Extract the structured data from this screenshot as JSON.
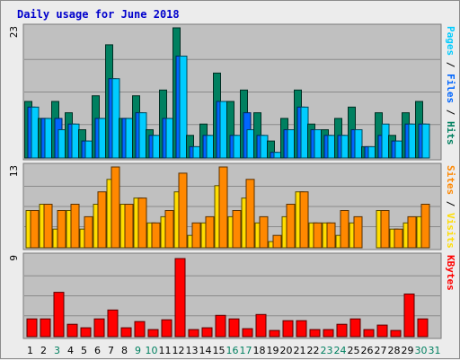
{
  "chart_data": {
    "type": "bar",
    "title": "Daily usage for June 2018",
    "categories": [
      "1",
      "2",
      "3",
      "4",
      "5",
      "6",
      "7",
      "8",
      "9",
      "10",
      "11",
      "12",
      "13",
      "14",
      "15",
      "16",
      "17",
      "18",
      "19",
      "20",
      "21",
      "22",
      "23",
      "24",
      "25",
      "26",
      "27",
      "28",
      "29",
      "30",
      "31"
    ],
    "weekend_days": [
      "3",
      "9",
      "10",
      "16",
      "17",
      "23",
      "24",
      "30",
      "31"
    ],
    "panels": [
      {
        "id": "hits",
        "ylim": [
          0,
          23
        ],
        "max_label": "23",
        "axis_title_parts": [
          {
            "text": "Pages",
            "color": "#00ccff"
          },
          {
            "text": " / ",
            "color": "#000000"
          },
          {
            "text": "Files",
            "color": "#0066ff"
          },
          {
            "text": " / ",
            "color": "#000000"
          },
          {
            "text": "Hits",
            "color": "#008060"
          }
        ],
        "series": [
          {
            "name": "Hits",
            "color": "#008060",
            "values": [
              10,
              7,
              10,
              8,
              5,
              11,
              20,
              7,
              11,
              5,
              12,
              23,
              4,
              6,
              15,
              10,
              12,
              8,
              3,
              7,
              12,
              6,
              5,
              7,
              9,
              2,
              8,
              4,
              8,
              10,
              0
            ]
          },
          {
            "name": "Files",
            "color": "#0066ff",
            "values": [
              9,
              7,
              7,
              6,
              3,
              7,
              14,
              7,
              8,
              4,
              7,
              18,
              2,
              4,
              10,
              4,
              8,
              4,
              1,
              5,
              9,
              5,
              4,
              4,
              5,
              2,
              4,
              3,
              6,
              6,
              0
            ]
          },
          {
            "name": "Pages",
            "color": "#00ccff",
            "values": [
              9,
              7,
              5,
              6,
              3,
              7,
              14,
              7,
              8,
              4,
              7,
              18,
              2,
              4,
              10,
              4,
              5,
              4,
              1,
              5,
              9,
              5,
              4,
              4,
              5,
              2,
              6,
              3,
              6,
              6,
              0
            ]
          }
        ]
      },
      {
        "id": "visits",
        "ylim": [
          0,
          13
        ],
        "max_label": "13",
        "axis_title_parts": [
          {
            "text": "Sites",
            "color": "#ff8800"
          },
          {
            "text": " / ",
            "color": "#000000"
          },
          {
            "text": "Visits",
            "color": "#ffdd00"
          }
        ],
        "series": [
          {
            "name": "Visits",
            "color": "#ffdd00",
            "values": [
              6,
              7,
              3,
              6,
              3,
              7,
              11,
              7,
              8,
              4,
              5,
              9,
              2,
              4,
              10,
              5,
              8,
              4,
              1,
              5,
              9,
              4,
              4,
              2,
              4,
              0,
              6,
              3,
              4,
              5,
              0
            ]
          },
          {
            "name": "Sites",
            "color": "#ff8800",
            "values": [
              6,
              7,
              6,
              7,
              5,
              9,
              13,
              7,
              8,
              4,
              6,
              12,
              4,
              5,
              13,
              6,
              11,
              5,
              2,
              7,
              9,
              4,
              4,
              6,
              5,
              0,
              6,
              3,
              5,
              7,
              0
            ]
          }
        ]
      },
      {
        "id": "kbytes",
        "ylim": [
          0,
          9
        ],
        "max_label": "9",
        "axis_title_parts": [
          {
            "text": "KBytes",
            "color": "#ff0000"
          }
        ],
        "series": [
          {
            "name": "KBytes",
            "color": "#ff0000",
            "values": [
              2,
              2,
              5,
              1.4,
              1,
              2,
              3,
              1,
              1.7,
              0.8,
              1.9,
              8.8,
              0.8,
              1,
              2.4,
              2,
              0.9,
              2.5,
              0.7,
              1.8,
              1.8,
              0.8,
              0.8,
              1.4,
              2,
              0.8,
              1.3,
              0.7,
              4.8,
              2,
              0
            ]
          }
        ]
      }
    ]
  }
}
